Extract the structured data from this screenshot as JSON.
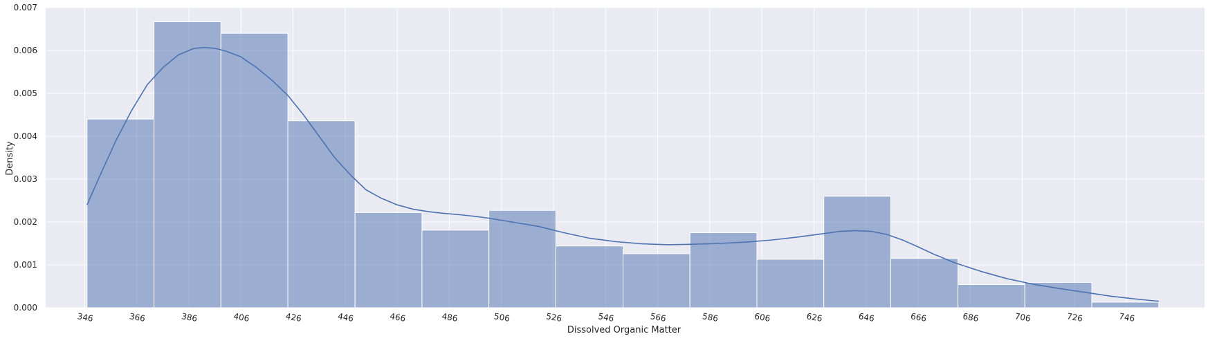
{
  "chart_data": {
    "type": "histogram",
    "xlabel": "Dissolved Organic Matter",
    "ylabel": "Density",
    "xlim": [
      331,
      776
    ],
    "ylim": [
      0,
      0.007
    ],
    "grid": true,
    "x_ticks": [
      346,
      366,
      386,
      406,
      426,
      446,
      466,
      486,
      506,
      526,
      546,
      566,
      586,
      606,
      626,
      646,
      666,
      686,
      706,
      726,
      746
    ],
    "y_ticks": [
      0.0,
      0.001,
      0.002,
      0.003,
      0.004,
      0.005,
      0.006,
      0.007
    ],
    "y_tick_labels": [
      "0.000",
      "0.001",
      "0.002",
      "0.003",
      "0.004",
      "0.005",
      "0.006",
      "0.007"
    ],
    "bin_edges": [
      346.9,
      372.6,
      398.3,
      424.0,
      449.8,
      475.5,
      501.2,
      526.9,
      552.7,
      578.4,
      604.1,
      629.8,
      655.5,
      681.3,
      707.0,
      732.7,
      758.4
    ],
    "densities": [
      0.0044,
      0.00667,
      0.0064,
      0.00436,
      0.00222,
      0.00181,
      0.00227,
      0.00144,
      0.00126,
      0.00175,
      0.00113,
      0.0026,
      0.00115,
      0.00054,
      0.00059,
      0.00013
    ],
    "kde": {
      "x": [
        346.9,
        352,
        358,
        364,
        370,
        376,
        382,
        388,
        392,
        396,
        400,
        406,
        412,
        418,
        424,
        430,
        436,
        442,
        448,
        454,
        460,
        466,
        472,
        478,
        484,
        490,
        496,
        502,
        510,
        520,
        530,
        540,
        550,
        560,
        570,
        580,
        590,
        600,
        610,
        620,
        630,
        636,
        642,
        648,
        654,
        660,
        666,
        672,
        680,
        690,
        700,
        710,
        720,
        730,
        740,
        750,
        758.4
      ],
      "y": [
        0.0024,
        0.0031,
        0.0039,
        0.0046,
        0.0052,
        0.0056,
        0.0059,
        0.00605,
        0.00607,
        0.00605,
        0.00599,
        0.00585,
        0.0056,
        0.0053,
        0.00495,
        0.0045,
        0.004,
        0.0035,
        0.0031,
        0.00275,
        0.00255,
        0.0024,
        0.0023,
        0.00224,
        0.0022,
        0.00217,
        0.00213,
        0.00208,
        0.002,
        0.0019,
        0.00175,
        0.00162,
        0.00154,
        0.00149,
        0.00147,
        0.00148,
        0.0015,
        0.00153,
        0.00158,
        0.00165,
        0.00173,
        0.00178,
        0.0018,
        0.00178,
        0.00171,
        0.00158,
        0.00142,
        0.00125,
        0.00105,
        0.00085,
        0.00068,
        0.00055,
        0.00045,
        0.00036,
        0.00027,
        0.0002,
        0.00015
      ]
    },
    "colors": {
      "background": "#eaeaf2",
      "grid": "#ffffff",
      "bar_fill": "#4c72b0",
      "bar_alpha": 0.5,
      "kde_line": "#4c72b0"
    }
  }
}
